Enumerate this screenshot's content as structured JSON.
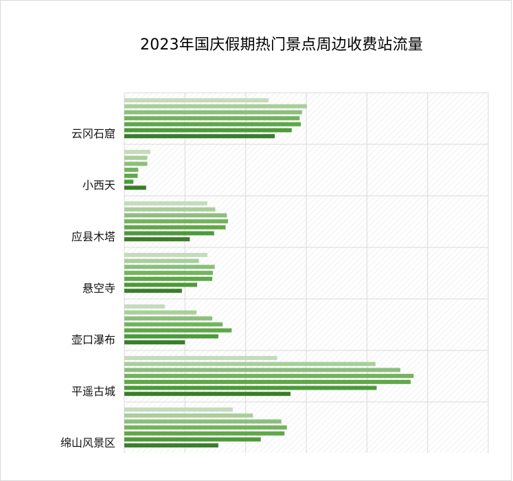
{
  "chart_data": {
    "type": "bar",
    "orientation": "horizontal",
    "title": "2023年国庆假期热门景点周边收费站流量",
    "categories": [
      "云冈石窟",
      "小西天",
      "应县木塔",
      "悬空寺",
      "壶口瀑布",
      "平遥古城",
      "绵山风景区"
    ],
    "series": [
      {
        "values": [
          2380,
          430,
          1370,
          1370,
          670,
          2520,
          1790
        ]
      },
      {
        "values": [
          3010,
          380,
          1500,
          1230,
          1190,
          4140,
          2120
        ]
      },
      {
        "values": [
          2930,
          380,
          1690,
          1490,
          1450,
          4550,
          2590
        ]
      },
      {
        "values": [
          2890,
          230,
          1710,
          1460,
          1620,
          4770,
          2680
        ]
      },
      {
        "values": [
          2910,
          220,
          1670,
          1450,
          1770,
          4720,
          2640
        ]
      },
      {
        "values": [
          2760,
          150,
          1480,
          1200,
          1550,
          4160,
          2250
        ]
      },
      {
        "values": [
          2480,
          360,
          1080,
          950,
          1000,
          2740,
          1550
        ]
      }
    ],
    "colors": [
      "#c4dcbc",
      "#a8cf9a",
      "#8bbf7c",
      "#74b35e",
      "#5fa848",
      "#4c9a3a",
      "#3a7d2a"
    ],
    "xlim": [
      0,
      6000
    ],
    "grid": true
  }
}
